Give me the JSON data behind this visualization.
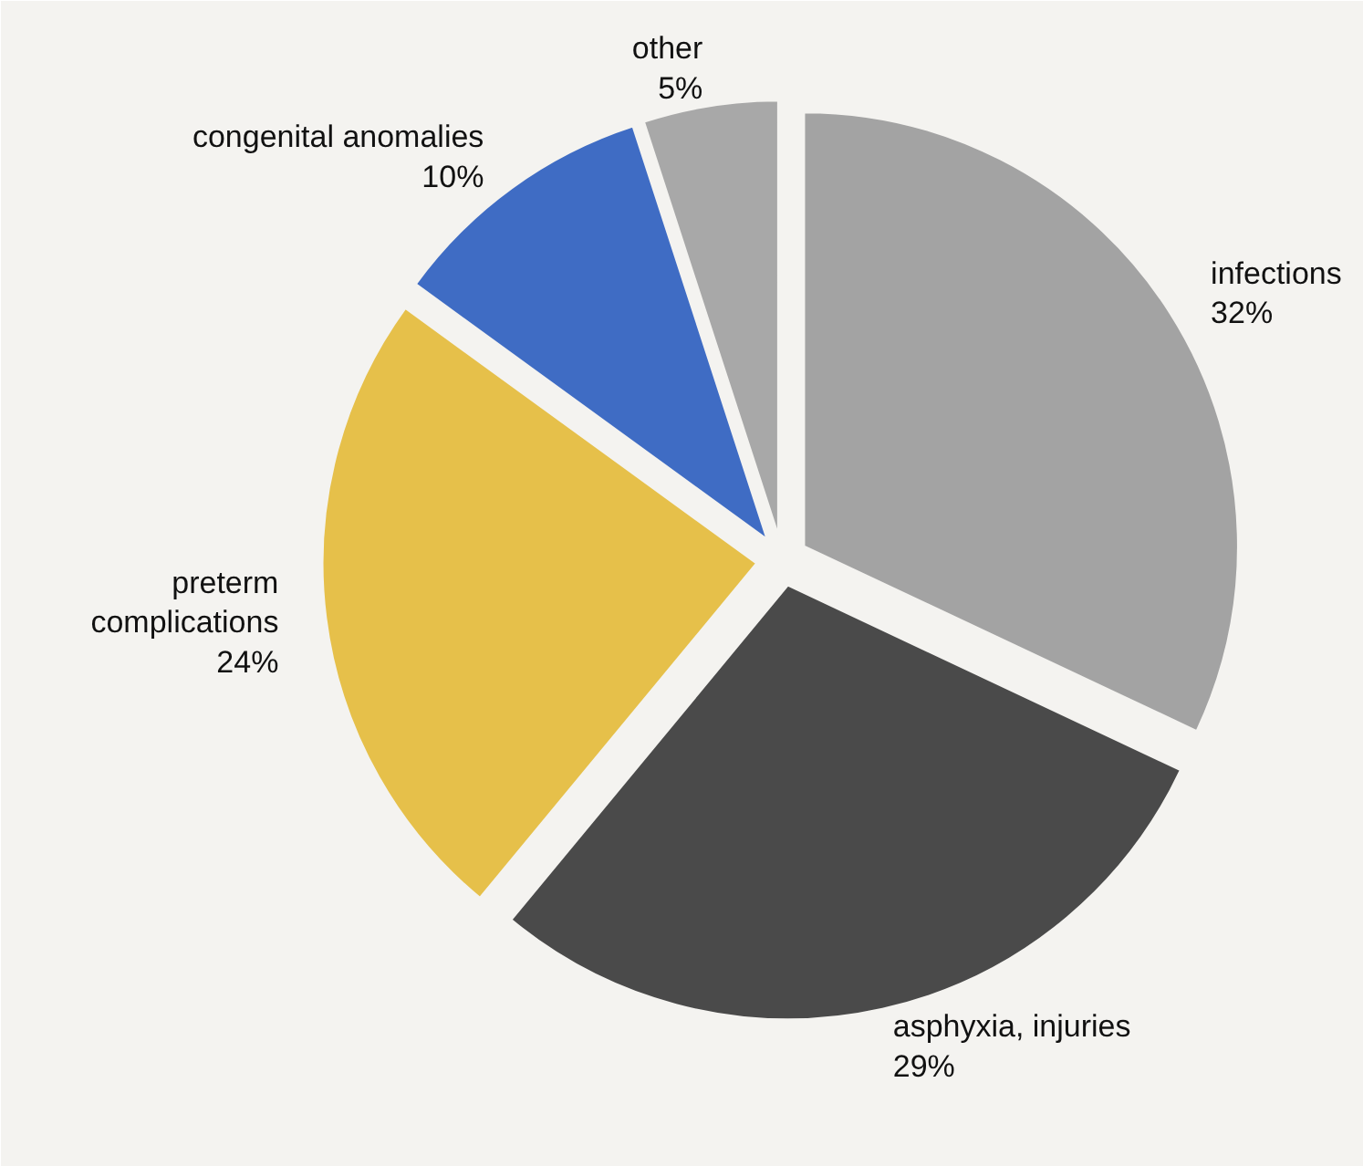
{
  "chart_data": {
    "type": "pie",
    "categories": [
      "infections",
      "asphyxia, injuries",
      "preterm complications",
      "congenital anomalies",
      "other"
    ],
    "values": [
      32,
      29,
      24,
      10,
      5
    ],
    "colors": [
      "#a3a3a3",
      "#4a4a4a",
      "#e6c04a",
      "#3f6cc4",
      "#a8a8a8"
    ],
    "value_labels": [
      "32%",
      "29%",
      "24%",
      "10%",
      "5%"
    ]
  }
}
